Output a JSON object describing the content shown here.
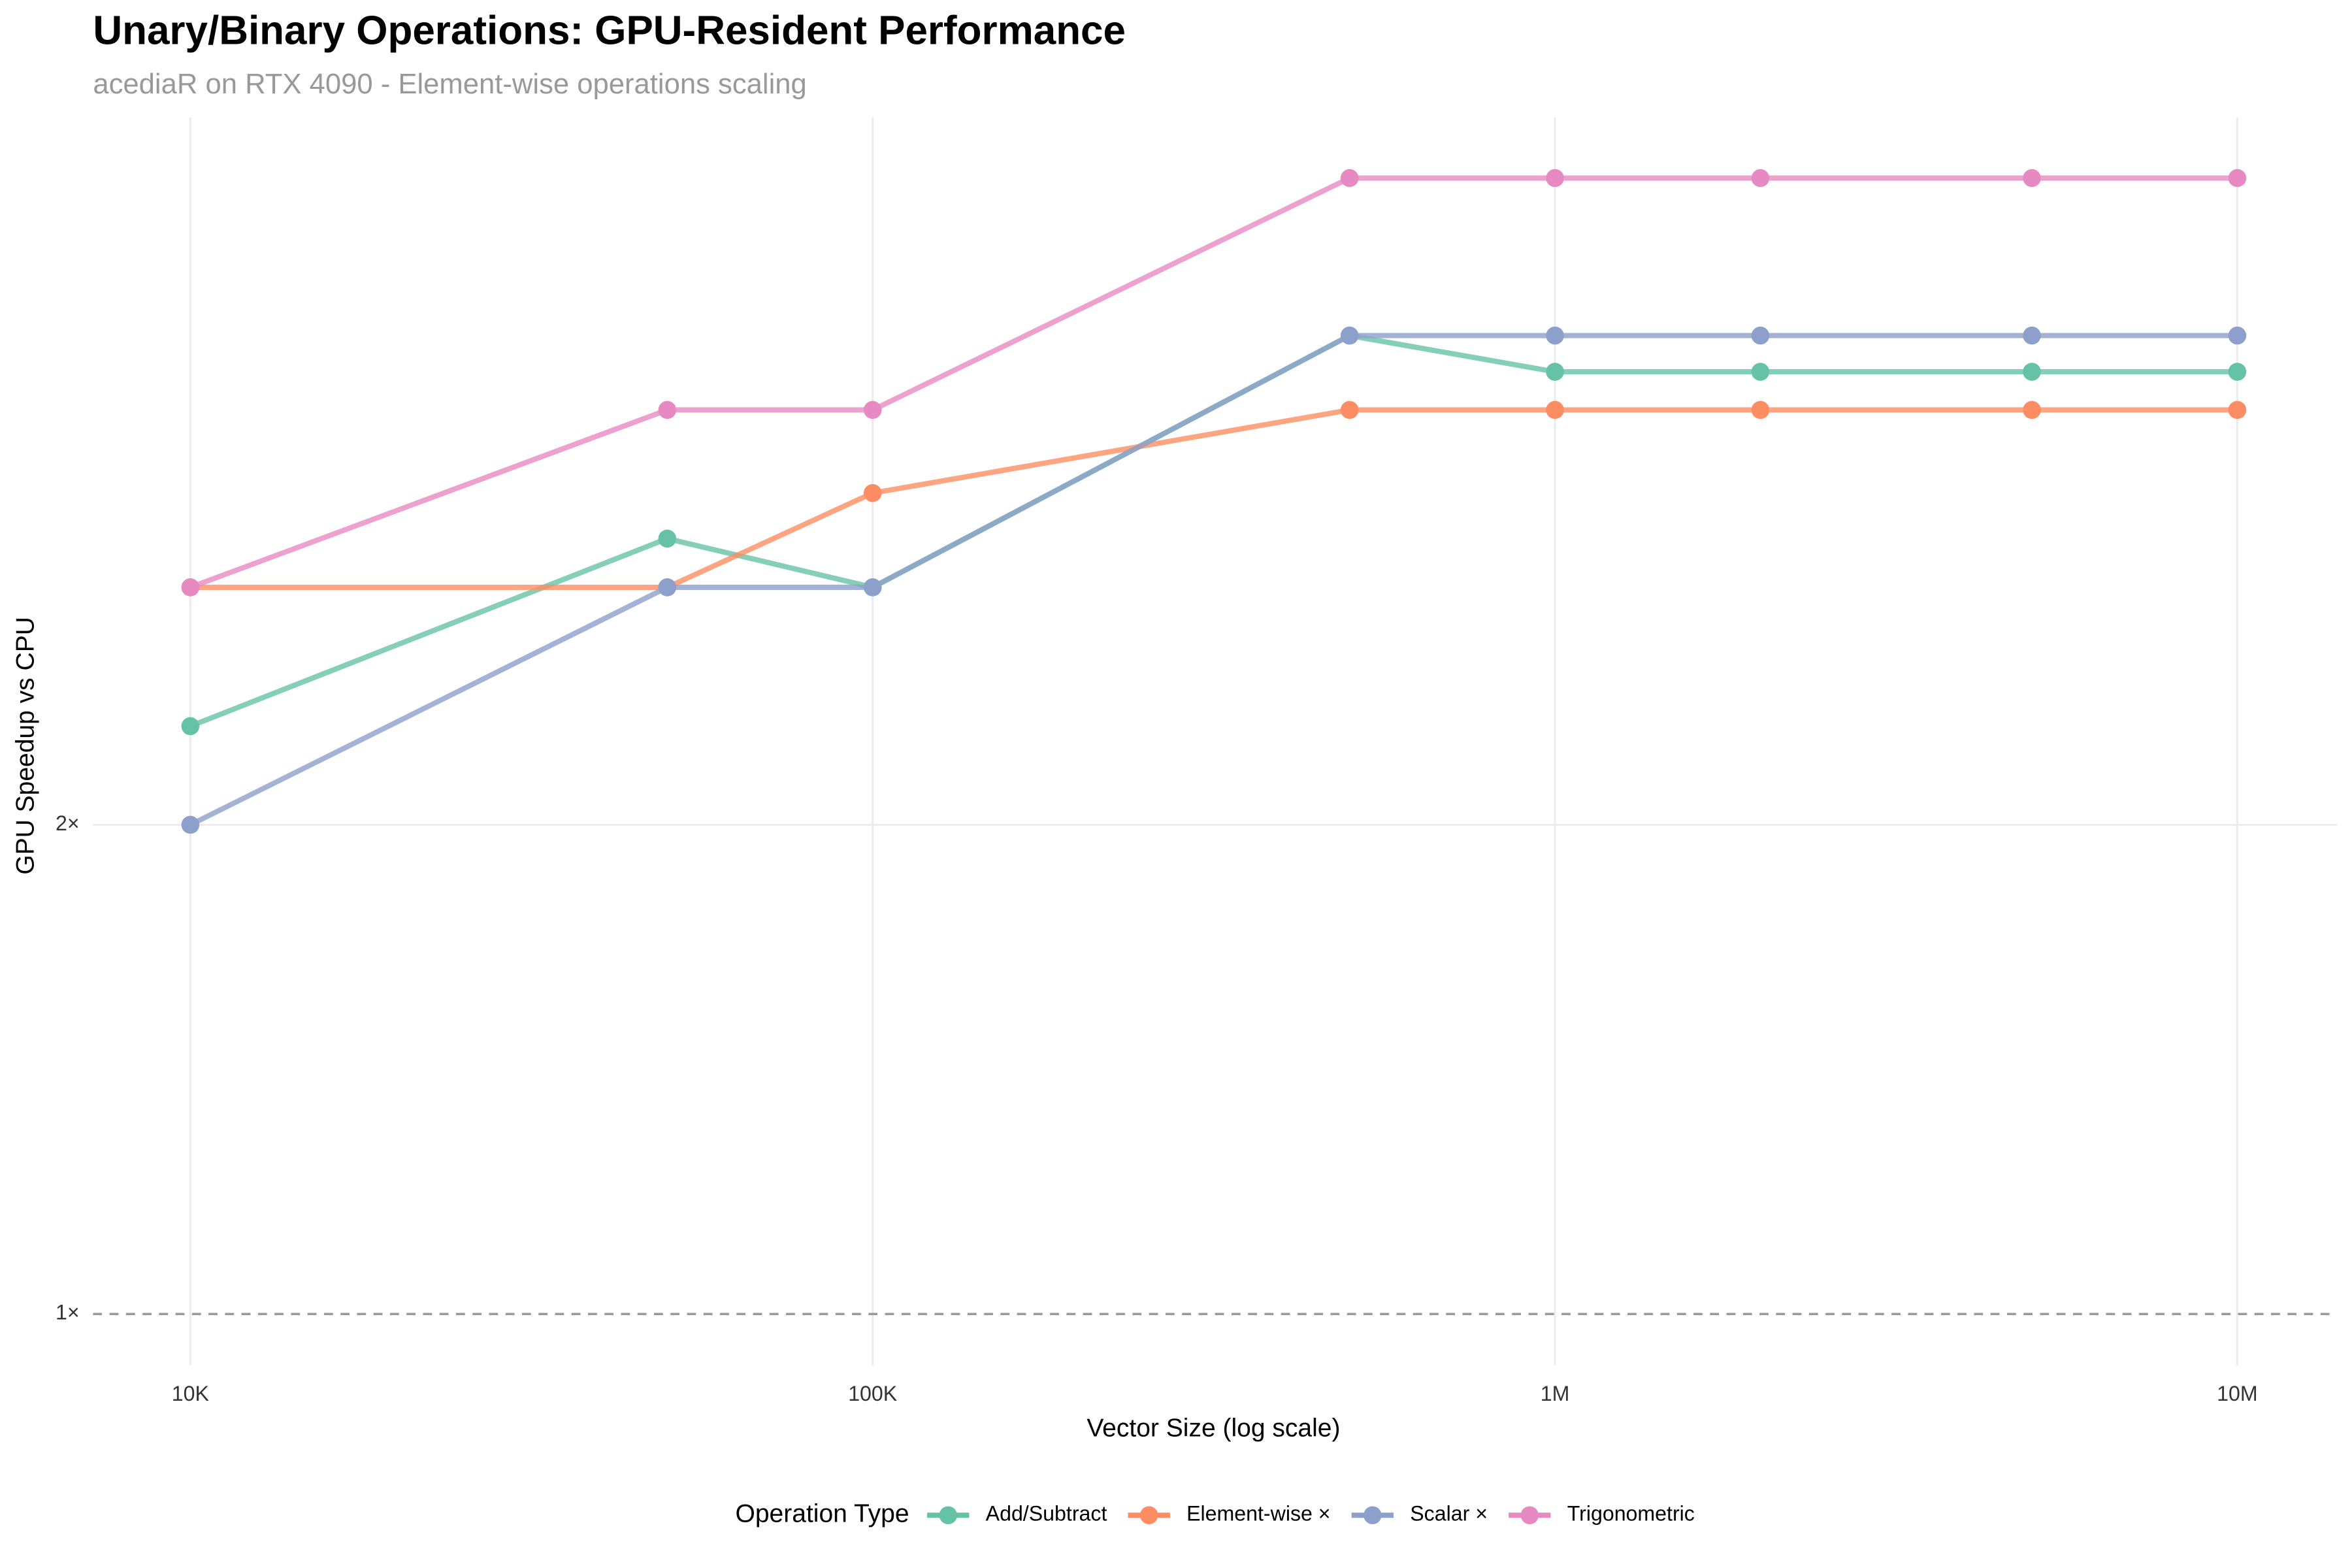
{
  "chart_data": {
    "type": "line",
    "title": "Unary/Binary Operations: GPU-Resident Performance",
    "subtitle": "acediaR on RTX 4090 - Element-wise operations scaling",
    "x_label": "Vector Size (log scale)",
    "y_label": "GPU Speedup vs CPU",
    "x": [
      10000,
      50000,
      100000,
      500000,
      1000000,
      2000000,
      5000000,
      10000000
    ],
    "series": [
      {
        "name": "Add/Subtract",
        "color": "#66c2a5",
        "values": [
          2.3,
          3.0,
          2.8,
          4.0,
          3.8,
          3.8,
          3.8,
          3.8
        ]
      },
      {
        "name": "Element-wise ×",
        "color": "#fc8d62",
        "values": [
          2.8,
          2.8,
          3.2,
          3.6,
          3.6,
          3.6,
          3.6,
          3.6
        ]
      },
      {
        "name": "Scalar ×",
        "color": "#8da0cb",
        "values": [
          2.0,
          2.8,
          2.8,
          4.0,
          4.0,
          4.0,
          4.0,
          4.0
        ]
      },
      {
        "name": "Trigonometric",
        "color": "#e78ac3",
        "values": [
          2.8,
          3.6,
          3.6,
          5.0,
          5.0,
          5.0,
          5.0,
          5.0
        ]
      }
    ],
    "xlog": true,
    "ylog": true,
    "xlim": [
      7200,
      14000000
    ],
    "ylim": [
      0.93,
      5.45
    ],
    "xticks": [
      {
        "value": 10000,
        "label": "10K"
      },
      {
        "value": 100000,
        "label": "100K"
      },
      {
        "value": 1000000,
        "label": "1M"
      },
      {
        "value": 10000000,
        "label": "10M"
      }
    ],
    "yticks": [
      {
        "value": 1,
        "label": "1×"
      },
      {
        "value": 2,
        "label": "2×"
      }
    ],
    "reference_line": 1,
    "grid": true,
    "legend_title": "Operation Type",
    "legend_position": "bottom"
  }
}
